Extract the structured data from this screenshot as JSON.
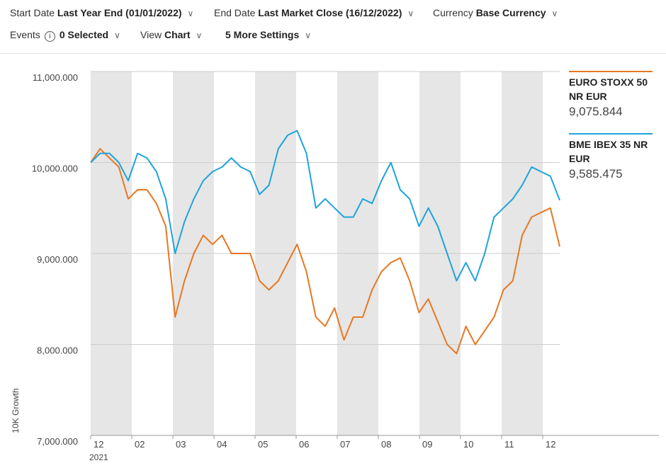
{
  "header": {
    "start_label": "Start Date",
    "start_value": "Last Year End (01/01/2022)",
    "end_label": "End Date",
    "end_value": "Last Market Close (16/12/2022)",
    "currency_label": "Currency",
    "currency_value": "Base Currency",
    "events_label": "Events",
    "events_value": "0 Selected",
    "view_label": "View",
    "view_value": "Chart",
    "settings": "5 More Settings"
  },
  "chart_data": {
    "type": "line",
    "y_label": "10K Growth",
    "x_labels": [
      "12",
      "02",
      "03",
      "04",
      "05",
      "06",
      "07",
      "08",
      "09",
      "10",
      "11",
      "12"
    ],
    "x_year_label": "2021",
    "ylim": [
      7000000,
      11000000
    ],
    "yticks": [
      {
        "value": 7000000,
        "label": "7,000.000"
      },
      {
        "value": 8000000,
        "label": "8,000.000"
      },
      {
        "value": 9000000,
        "label": "9,000.000"
      },
      {
        "value": 10000000,
        "label": "10,000.000"
      },
      {
        "value": 11000000,
        "label": "11,000.000"
      }
    ],
    "grid": true,
    "series": [
      {
        "name": "EURO STOXX 50 NR EUR",
        "color": "#e87722",
        "values": [
          10000000,
          10150000,
          10050000,
          9950000,
          9600000,
          9700000,
          9700000,
          9550000,
          9300000,
          8300000,
          8700000,
          9000000,
          9200000,
          9100000,
          9200000,
          9000000,
          9000000,
          9000000,
          8700000,
          8600000,
          8700000,
          8900000,
          9100000,
          8800000,
          8300000,
          8200000,
          8400000,
          8050000,
          8300000,
          8300000,
          8600000,
          8800000,
          8900000,
          8950000,
          8700000,
          8350000,
          8500000,
          8250000,
          8000000,
          7900000,
          8200000,
          8000000,
          8150000,
          8300000,
          8600000,
          8700000,
          9200000,
          9400000,
          9450000,
          9500000
        ],
        "latest": {
          "value": 9075844,
          "label": "9,075.844"
        }
      },
      {
        "name": "BME IBEX 35 NR EUR",
        "color": "#1fa3dc",
        "values": [
          10000000,
          10100000,
          10100000,
          10000000,
          9800000,
          10100000,
          10050000,
          9900000,
          9600000,
          9000000,
          9350000,
          9600000,
          9800000,
          9900000,
          9950000,
          10050000,
          9950000,
          9900000,
          9650000,
          9750000,
          10150000,
          10300000,
          10350000,
          10100000,
          9500000,
          9600000,
          9500000,
          9400000,
          9400000,
          9600000,
          9550000,
          9800000,
          10000000,
          9700000,
          9600000,
          9300000,
          9500000,
          9300000,
          9000000,
          8700000,
          8900000,
          8700000,
          9000000,
          9400000,
          9500000,
          9600000,
          9750000,
          9950000,
          9900000,
          9850000
        ],
        "latest": {
          "value": 9585475,
          "label": "9,585.475"
        }
      }
    ]
  }
}
